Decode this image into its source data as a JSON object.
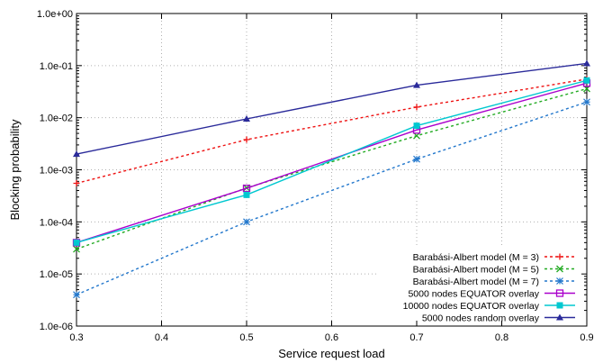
{
  "chart_data": {
    "type": "line",
    "title": "",
    "xlabel": "Service request load",
    "ylabel": "Blocking probability",
    "xlim": [
      0.3,
      0.9
    ],
    "ylim": [
      1e-06,
      1
    ],
    "yscale": "log",
    "grid": true,
    "legend_position": "bottom-right",
    "x_ticks": [
      "0.3",
      "0.4",
      "0.5",
      "0.6",
      "0.7",
      "0.8",
      "0.9"
    ],
    "y_ticks": [
      "1.0e-06",
      "1.0e-05",
      "1.0e-04",
      "1.0e-03",
      "1.0e-02",
      "1.0e-01",
      "1.0e+00"
    ],
    "x": [
      0.3,
      0.5,
      0.7,
      0.9
    ],
    "series": [
      {
        "name": "Barabási-Albert model (M = 3)",
        "color": "#ee1111",
        "dash": "dotted",
        "marker": "plus",
        "values": [
          0.00055,
          0.0038,
          0.016,
          0.055
        ]
      },
      {
        "name": "Barabási-Albert model (M = 5)",
        "color": "#22aa22",
        "dash": "dotted",
        "marker": "cross",
        "values": [
          3e-05,
          0.00045,
          0.0045,
          0.036
        ]
      },
      {
        "name": "Barabási-Albert model (M = 7)",
        "color": "#2277cc",
        "dash": "dotted",
        "marker": "star",
        "values": [
          4e-06,
          0.0001,
          0.0016,
          0.02
        ]
      },
      {
        "name": "5000 nodes EQUATOR overlay",
        "color": "#aa00cc",
        "dash": "solid",
        "marker": "square-open",
        "values": [
          4e-05,
          0.00044,
          0.0058,
          0.046
        ]
      },
      {
        "name": "10000 nodes EQUATOR overlay",
        "color": "#00c8d0",
        "dash": "solid",
        "marker": "square-filled",
        "values": [
          4e-05,
          0.00033,
          0.007,
          0.052
        ]
      },
      {
        "name": "5000 nodes random overlay",
        "color": "#2a2a9a",
        "dash": "solid",
        "marker": "triangle",
        "values": [
          0.002,
          0.0095,
          0.042,
          0.11
        ]
      }
    ]
  }
}
